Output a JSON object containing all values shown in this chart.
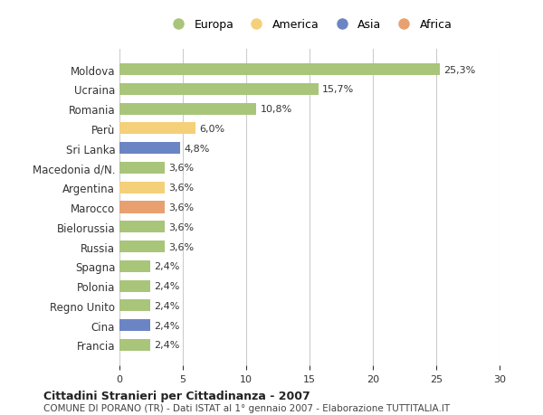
{
  "countries": [
    "Moldova",
    "Ucraina",
    "Romania",
    "Perù",
    "Sri Lanka",
    "Macedonia d/N.",
    "Argentina",
    "Marocco",
    "Bielorussia",
    "Russia",
    "Spagna",
    "Polonia",
    "Regno Unito",
    "Cina",
    "Francia"
  ],
  "values": [
    25.3,
    15.7,
    10.8,
    6.0,
    4.8,
    3.6,
    3.6,
    3.6,
    3.6,
    3.6,
    2.4,
    2.4,
    2.4,
    2.4,
    2.4
  ],
  "labels": [
    "25,3%",
    "15,7%",
    "10,8%",
    "6,0%",
    "4,8%",
    "3,6%",
    "3,6%",
    "3,6%",
    "3,6%",
    "3,6%",
    "2,4%",
    "2,4%",
    "2,4%",
    "2,4%",
    "2,4%"
  ],
  "continents": [
    "Europa",
    "Europa",
    "Europa",
    "America",
    "Asia",
    "Europa",
    "America",
    "Africa",
    "Europa",
    "Europa",
    "Europa",
    "Europa",
    "Europa",
    "Asia",
    "Europa"
  ],
  "colors": {
    "Europa": "#a8c57a",
    "America": "#f5d07a",
    "Asia": "#6b85c4",
    "Africa": "#e8a070"
  },
  "legend_order": [
    "Europa",
    "America",
    "Asia",
    "Africa"
  ],
  "title1": "Cittadini Stranieri per Cittadinanza - 2007",
  "title2": "COMUNE DI PORANO (TR) - Dati ISTAT al 1° gennaio 2007 - Elaborazione TUTTITALIA.IT",
  "xlim": [
    0,
    30
  ],
  "xticks": [
    0,
    5,
    10,
    15,
    20,
    25,
    30
  ],
  "background_color": "#ffffff",
  "grid_color": "#cccccc"
}
